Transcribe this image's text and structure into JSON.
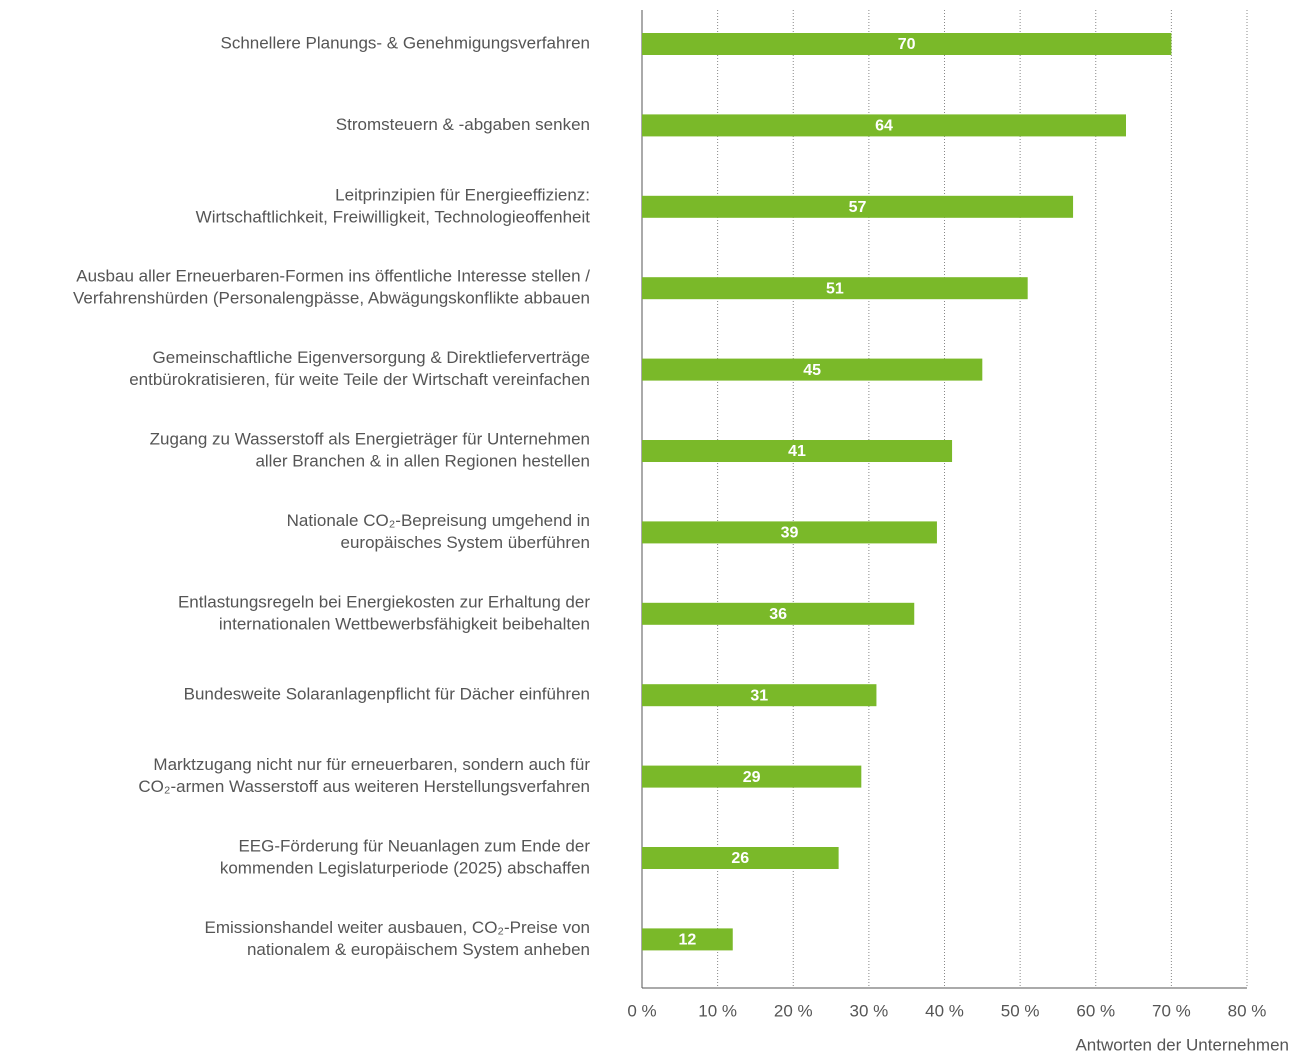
{
  "chart_data": {
    "type": "hbar",
    "categories": [
      [
        "Schnellere Planungs- & Genehmigungsverfahren"
      ],
      [
        "Stromsteuern & -abgaben senken"
      ],
      [
        "Leitprinzipien für Energieeffizienz:",
        "Wirtschaftlichkeit, Freiwilligkeit, Technologieoffenheit"
      ],
      [
        "Ausbau aller Erneuerbaren-Formen ins öffentliche Interesse stellen /",
        "Verfahrenshürden (Personalengpässe, Abwägungskonflikte abbauen"
      ],
      [
        "Gemeinschaftliche Eigenversorgung & Direktlieferverträge",
        "entbürokratisieren, für weite Teile der Wirtschaft vereinfachen"
      ],
      [
        "Zugang zu Wasserstoff als Energieträger für Unternehmen",
        "aller Branchen & in allen Regionen hestellen"
      ],
      [
        "Nationale CO₂-Bepreisung umgehend in",
        "europäisches System überführen"
      ],
      [
        "Entlastungsregeln bei Energiekosten zur Erhaltung der",
        "internationalen Wettbewerbsfähigkeit beibehalten"
      ],
      [
        "Bundesweite Solaranlagenpflicht für Dächer einführen"
      ],
      [
        "Marktzugang nicht nur für erneuerbaren, sondern auch für",
        "CO₂-armen Wasserstoff aus weiteren Herstellungsverfahren"
      ],
      [
        "EEG-Förderung für Neuanlagen zum Ende der",
        "kommenden Legislaturperiode (2025) abschaffen"
      ],
      [
        "Emissionshandel weiter ausbauen, CO₂-Preise von",
        "nationalem & europäischem System anheben"
      ]
    ],
    "values": [
      70,
      64,
      57,
      51,
      45,
      41,
      39,
      36,
      31,
      29,
      26,
      12
    ],
    "color": "#7ab929",
    "xlim": [
      0,
      80
    ],
    "xticks": [
      {
        "value": 0,
        "label": "0 %"
      },
      {
        "value": 10,
        "label": "10 %"
      },
      {
        "value": 20,
        "label": "20 %"
      },
      {
        "value": 30,
        "label": "30 %"
      },
      {
        "value": 40,
        "label": "40 %"
      },
      {
        "value": 50,
        "label": "50 %"
      },
      {
        "value": 60,
        "label": "60 %"
      },
      {
        "value": 70,
        "label": "70 %"
      },
      {
        "value": 80,
        "label": "80 %"
      }
    ],
    "xlabel": "Antworten der Unternehmen",
    "grid": true
  }
}
